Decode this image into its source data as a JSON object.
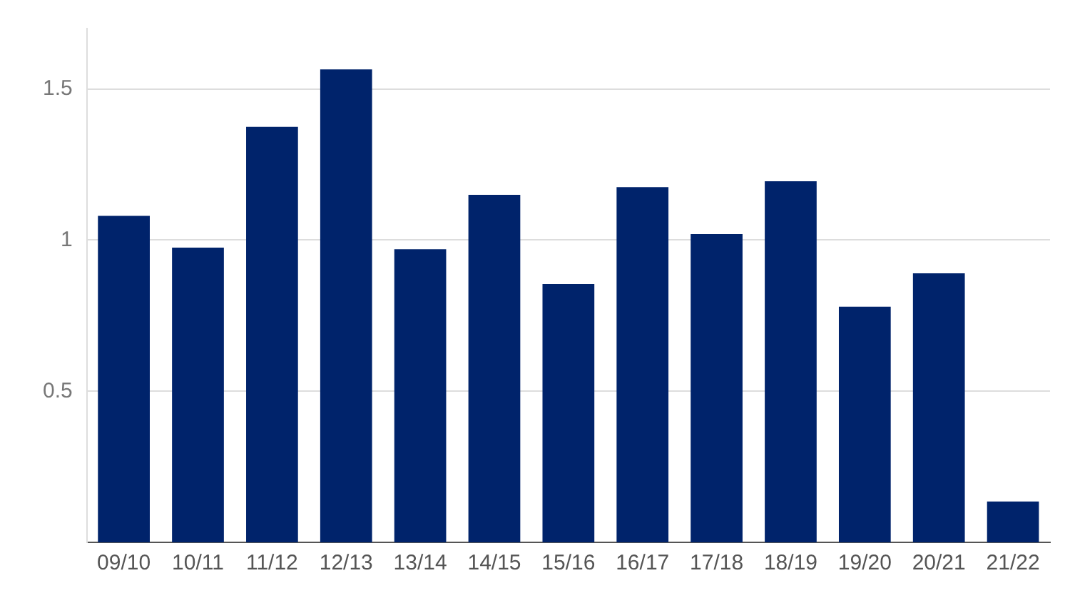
{
  "chart_data": {
    "type": "bar",
    "categories": [
      "09/10",
      "10/11",
      "11/12",
      "12/13",
      "13/14",
      "14/15",
      "15/16",
      "16/17",
      "17/18",
      "18/19",
      "19/20",
      "20/21",
      "21/22"
    ],
    "values": [
      1.08,
      0.975,
      1.375,
      1.565,
      0.97,
      1.15,
      0.855,
      1.175,
      1.02,
      1.195,
      0.78,
      0.89,
      0.135
    ],
    "color": "#00236b",
    "ylim": [
      0,
      1.7
    ],
    "yticks": [
      0.5,
      1,
      1.5
    ],
    "grid": "y",
    "legend": false
  }
}
